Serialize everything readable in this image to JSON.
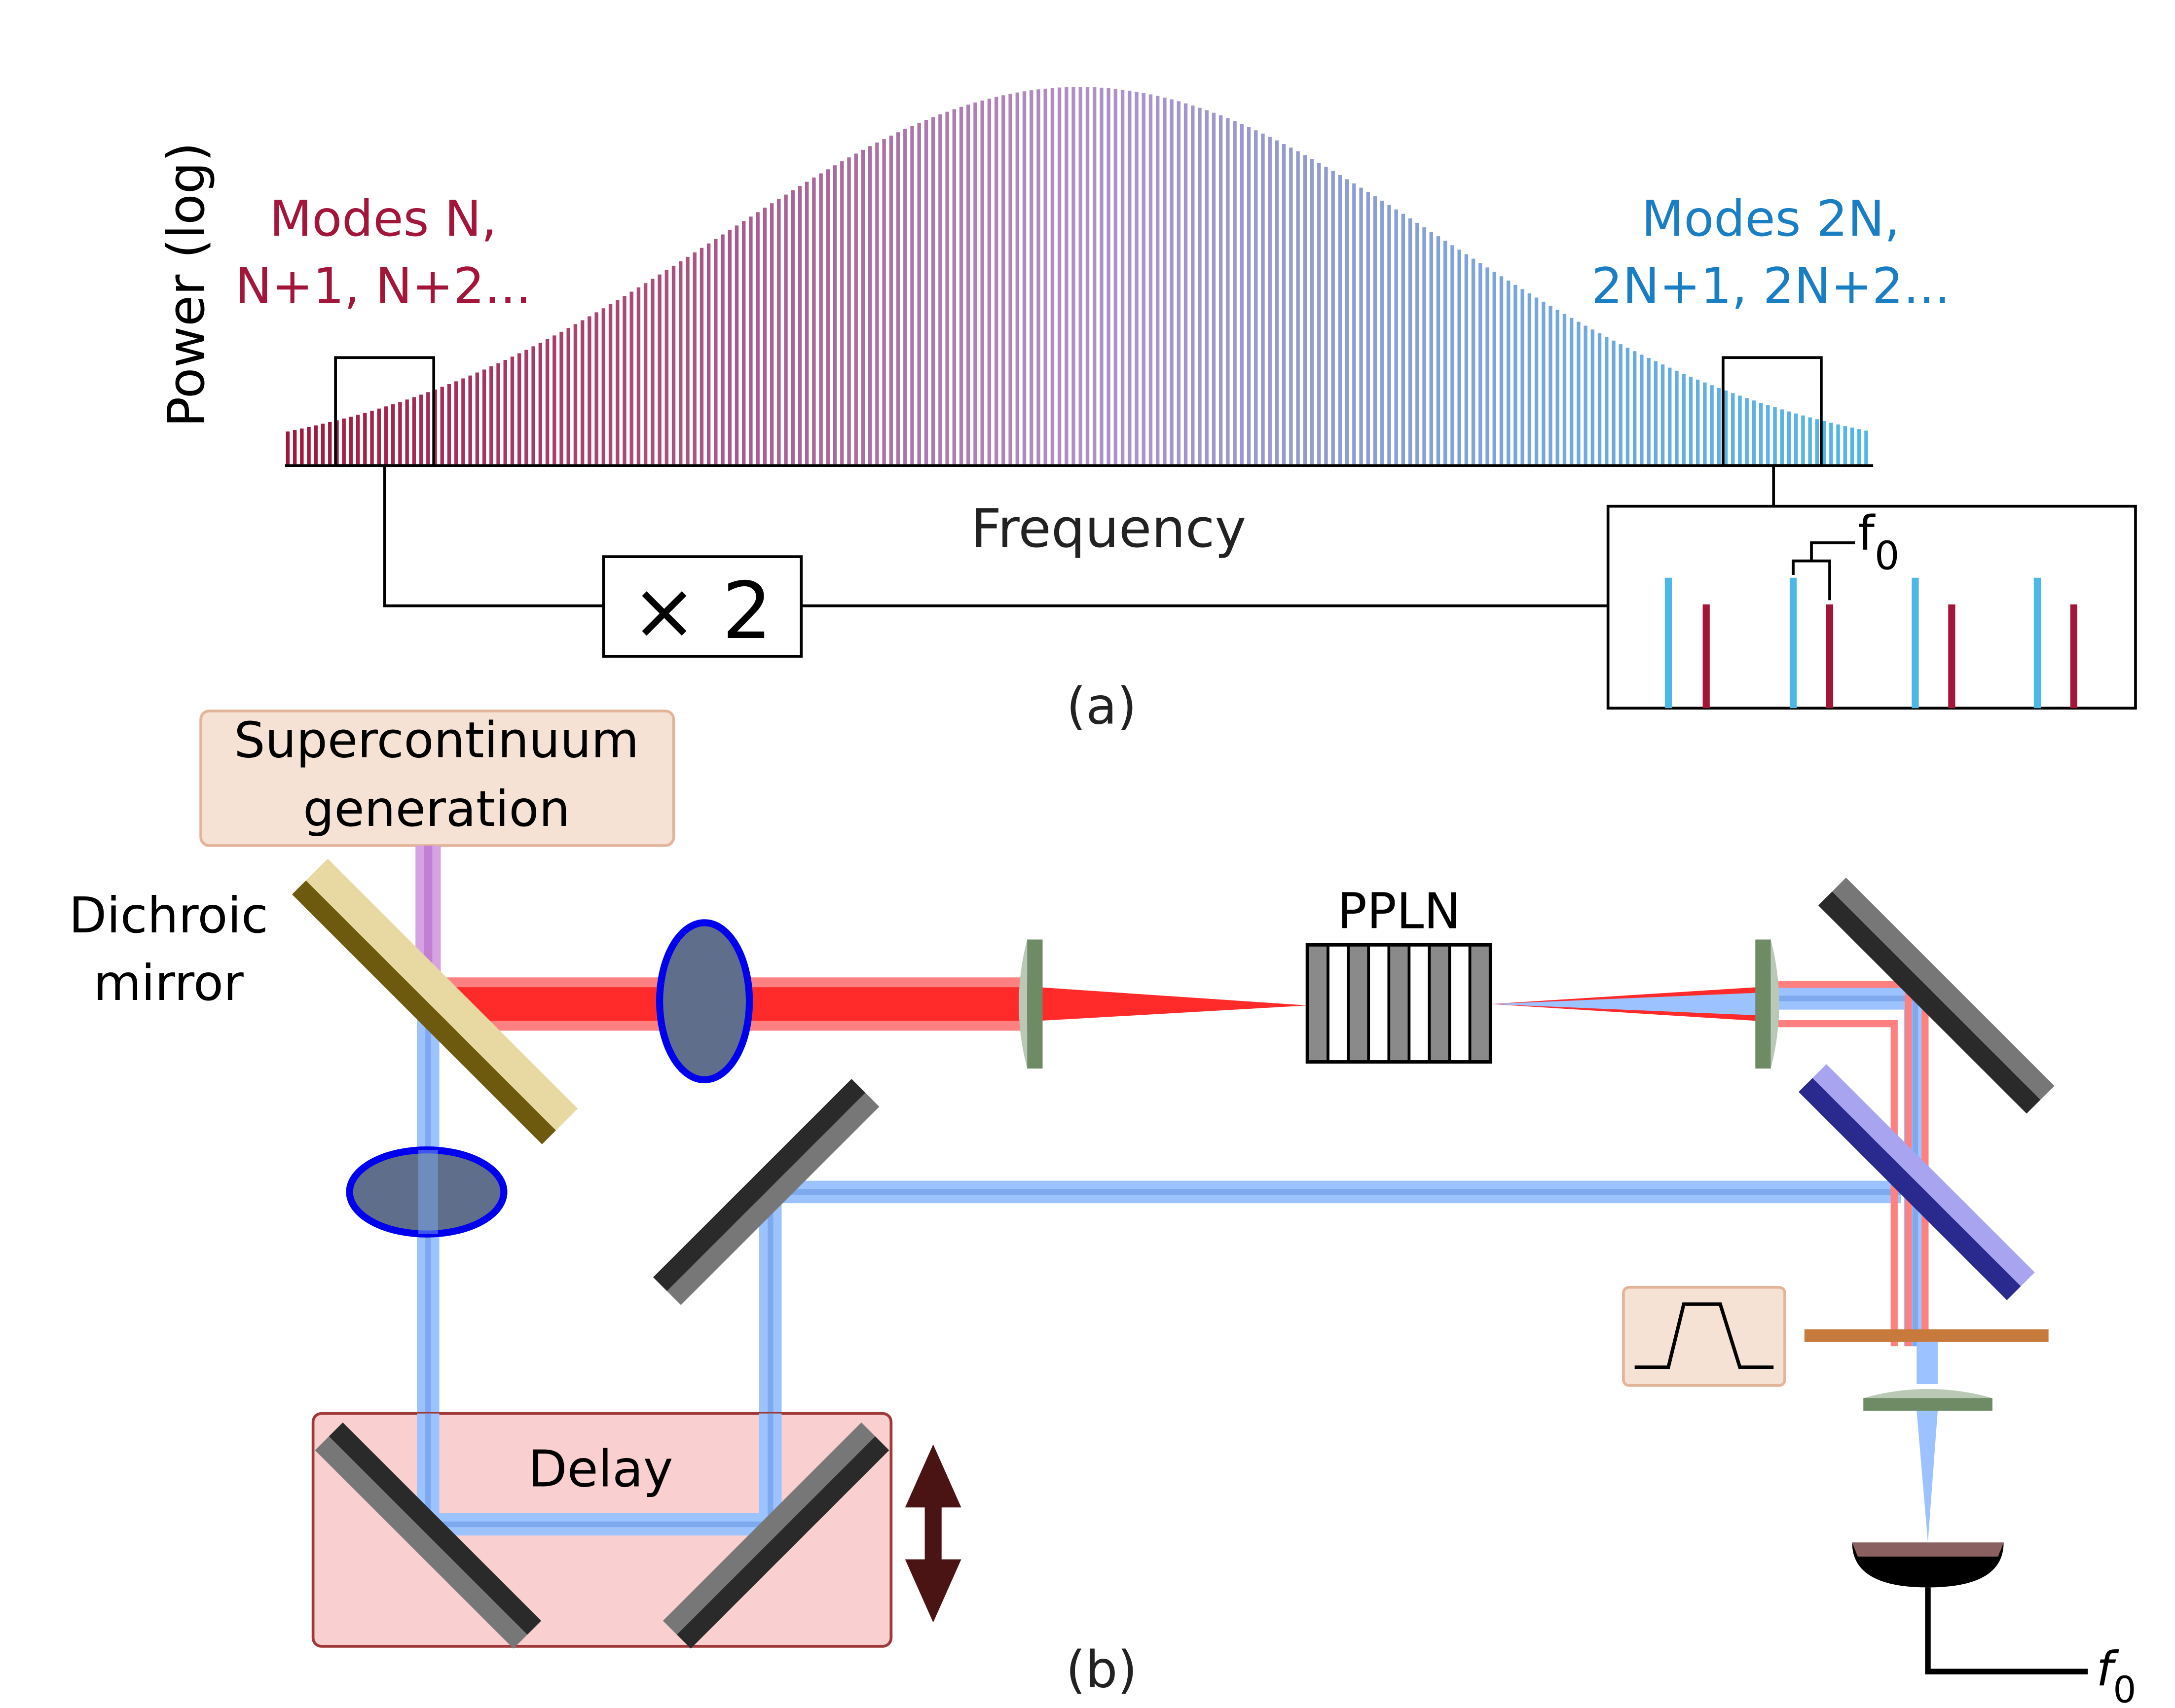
{
  "panel_a": {
    "y_axis_label": "Power (log)",
    "x_axis_label": "Frequency",
    "left_modes_line1": "Modes N,",
    "left_modes_line2": "N+1, N+2...",
    "right_modes_line1": "Modes 2N,",
    "right_modes_line2": "2N+1, 2N+2...",
    "multiplier_label": "× 2",
    "offset_symbol": "f",
    "offset_subscript": "0",
    "panel_label": "(a)",
    "colors": {
      "red_modes": "#a3163a",
      "blue_modes": "#4db8e8",
      "spectrum_mid": "#b090c8"
    }
  },
  "panel_b": {
    "supercontinuum_line1": "Supercontinuum",
    "supercontinuum_line2": "generation",
    "dichroic_line1": "Dichroic",
    "dichroic_line2": "mirror",
    "crystal_label": "PPLN",
    "delay_label": "Delay",
    "output_symbol": "f",
    "output_subscript": "0",
    "panel_label": "(b)",
    "colors": {
      "red_beam": "#ff2b2b",
      "blue_beam": "#9cc3ff",
      "lens_fill": "#5f6e8a",
      "lens_ring": "#0000ee",
      "delay_box": "#f9cfcf",
      "filter_plate": "#c87a3c"
    }
  }
}
